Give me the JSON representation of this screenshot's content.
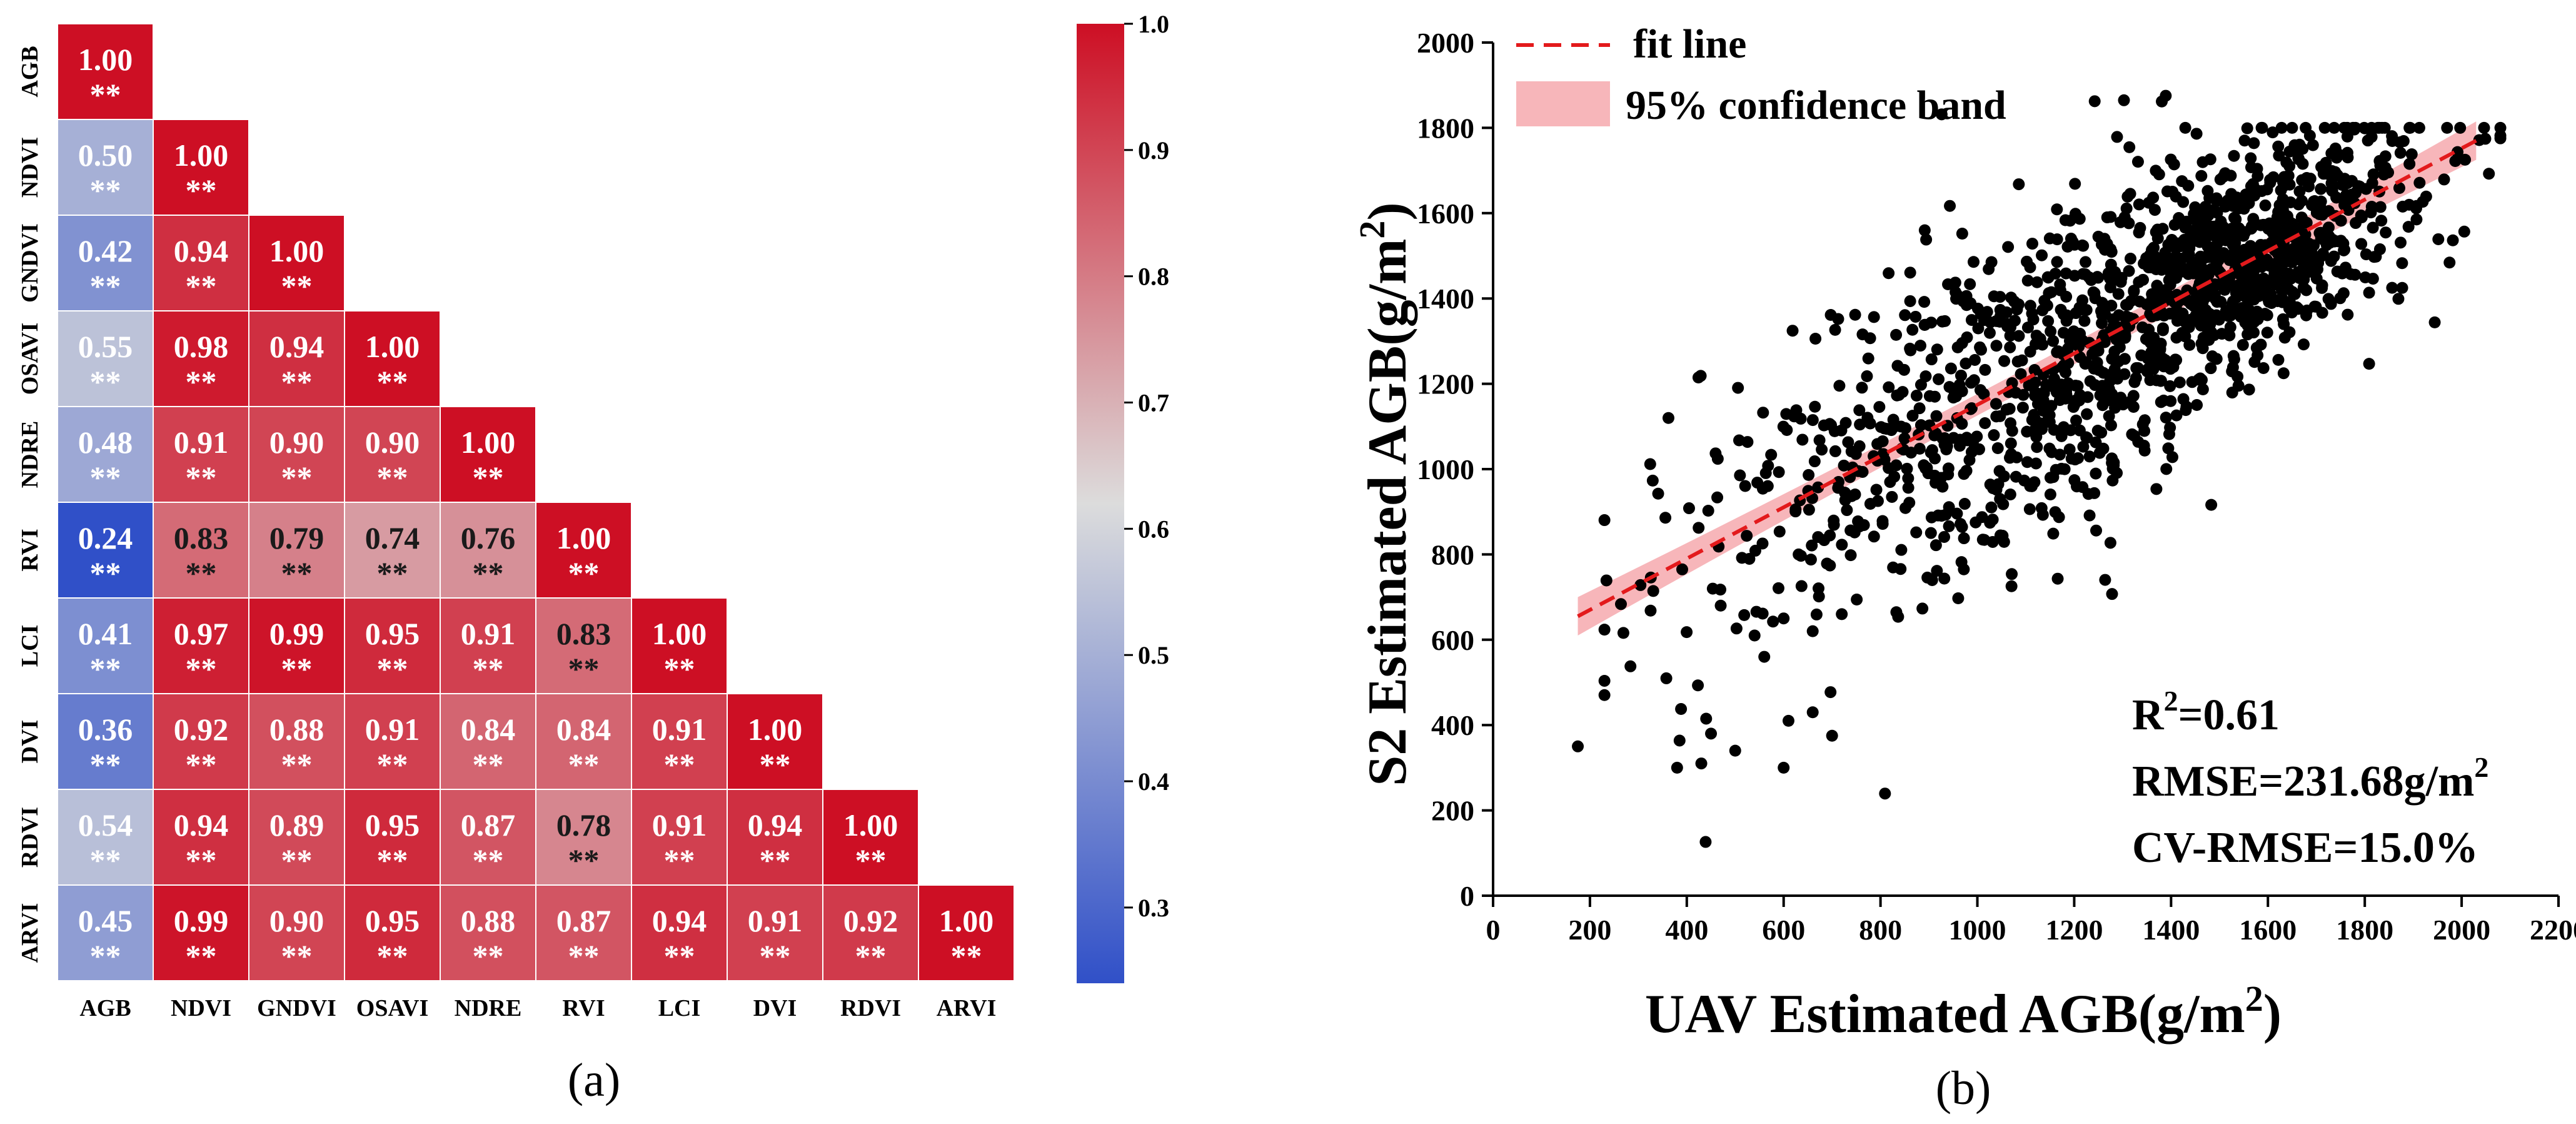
{
  "colors": {
    "low": "#3050c8",
    "mid": "#dcdcdc",
    "high": "#cd0f24",
    "text_light": "#ffffff",
    "text_dark": "#1a1a1a",
    "fit_line": "#e31a1c",
    "band": "#f6a9ae",
    "point": "#000000"
  },
  "chart_data": [
    {
      "panel": "a",
      "type": "heatmap",
      "caption": "(a)",
      "variables": [
        "AGB",
        "NDVI",
        "GNDVI",
        "OSAVI",
        "NDRE",
        "RVI",
        "LCI",
        "DVI",
        "RDVI",
        "ARVI"
      ],
      "matrix": [
        [
          1.0
        ],
        [
          0.5,
          1.0
        ],
        [
          0.42,
          0.94,
          1.0
        ],
        [
          0.55,
          0.98,
          0.94,
          1.0
        ],
        [
          0.48,
          0.91,
          0.9,
          0.9,
          1.0
        ],
        [
          0.24,
          0.83,
          0.79,
          0.74,
          0.76,
          1.0
        ],
        [
          0.41,
          0.97,
          0.99,
          0.95,
          0.91,
          0.83,
          1.0
        ],
        [
          0.36,
          0.92,
          0.88,
          0.91,
          0.84,
          0.84,
          0.91,
          1.0
        ],
        [
          0.54,
          0.94,
          0.89,
          0.95,
          0.87,
          0.78,
          0.91,
          0.94,
          1.0
        ],
        [
          0.45,
          0.99,
          0.9,
          0.95,
          0.88,
          0.87,
          0.94,
          0.91,
          0.92,
          1.0
        ]
      ],
      "significance": "**",
      "colorbar": {
        "min": 0.24,
        "max": 1.0,
        "ticks": [
          0.3,
          0.4,
          0.5,
          0.6,
          0.7,
          0.8,
          0.9,
          1.0
        ],
        "tick_labels": [
          "0.3",
          "0.4",
          "0.5",
          "0.6",
          "0.7",
          "0.8",
          "0.9",
          "1.0"
        ]
      }
    },
    {
      "panel": "b",
      "type": "scatter",
      "caption": "(b)",
      "xlabel_main": "UAV Estimated AGB(g/m",
      "xlabel_sup": "2",
      "xlabel_end": ")",
      "ylabel_main": "S2 Estimated AGB(g/m",
      "ylabel_sup": "2",
      "ylabel_end": ")",
      "xlim": [
        0,
        2200
      ],
      "ylim": [
        0,
        2000
      ],
      "xticks": [
        0,
        200,
        400,
        600,
        800,
        1000,
        1200,
        1400,
        1600,
        1800,
        2000,
        2200
      ],
      "yticks": [
        0,
        200,
        400,
        600,
        800,
        1000,
        1200,
        1400,
        1600,
        1800,
        2000
      ],
      "fit_line": {
        "x": [
          175,
          2030
        ],
        "y": [
          655,
          1770
        ]
      },
      "confidence_band_halfwidth": [
        45,
        25,
        45
      ],
      "legend": {
        "fit_line": "fit line",
        "band": "95% confidence band"
      },
      "stats": {
        "r2_main": "R",
        "r2_sup": "2",
        "r2_value": "=0.61",
        "rmse_main": "RMSE=231.68g/m",
        "rmse_sup": "2",
        "cv_rmse": "CV-RMSE=15.0%"
      },
      "points_note": "~1600 points; cloud along the fit line, densest near x=1500-1700, y=1500-1700",
      "outliers": [
        [
          175,
          350
        ],
        [
          380,
          300
        ],
        [
          430,
          310
        ],
        [
          440,
          415
        ],
        [
          450,
          380
        ],
        [
          500,
          340
        ],
        [
          600,
          300
        ],
        [
          610,
          410
        ],
        [
          660,
          430
        ],
        [
          700,
          375
        ],
        [
          560,
          560
        ],
        [
          540,
          610
        ],
        [
          470,
          680
        ],
        [
          600,
          650
        ],
        [
          660,
          620
        ],
        [
          720,
          660
        ]
      ]
    }
  ]
}
